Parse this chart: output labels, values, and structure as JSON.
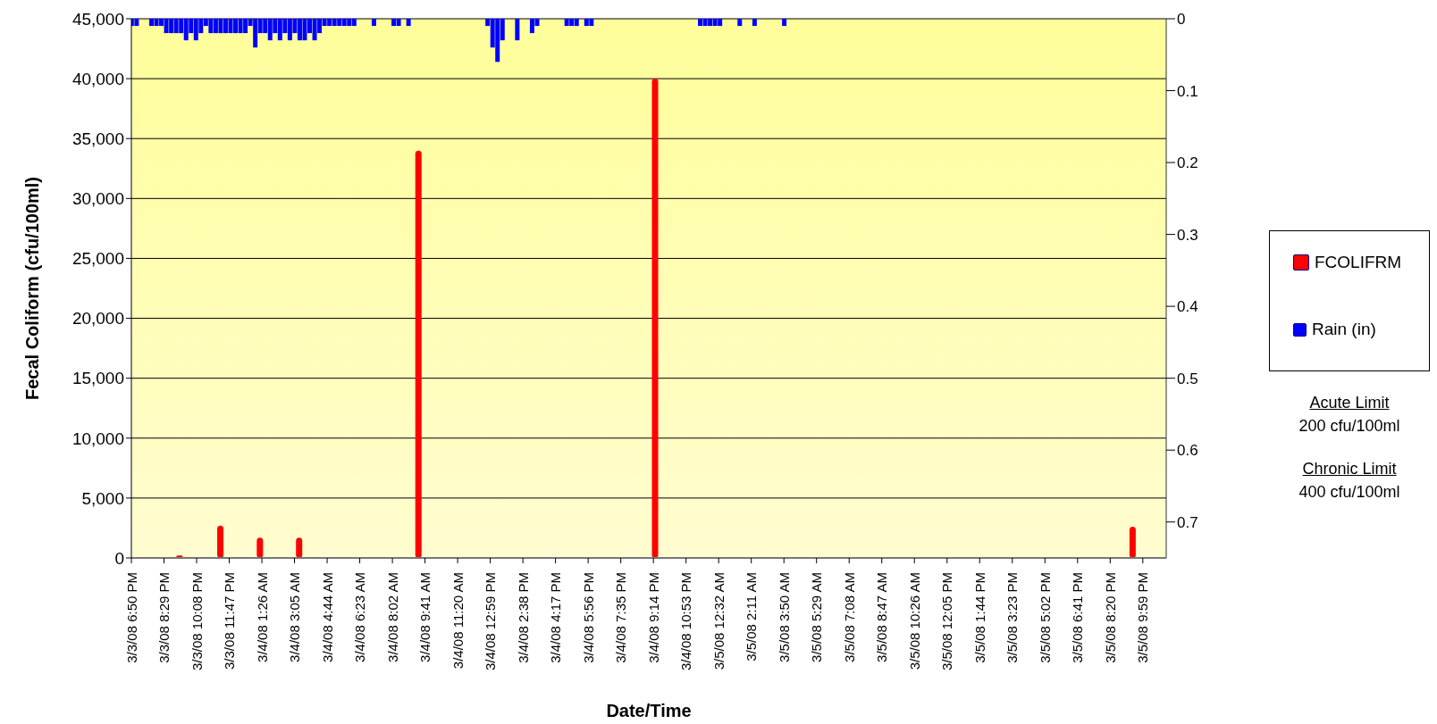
{
  "chart_data": {
    "type": "bar",
    "xlabel": "Date/Time",
    "ylabel": "Fecal Coliform (cfu/100ml)",
    "legend": "right",
    "grid": "y",
    "xlim": [
      "--03-03T18:50",
      "--03-05T23:10"
    ],
    "xticks": [
      {
        "value": "--03-03T18:50",
        "label": "3/3/08 6:50 PM"
      },
      {
        "value": "--03-03T20:29",
        "label": "3/3/08 8:29 PM"
      },
      {
        "value": "--03-03T22:08",
        "label": "3/3/08 10:08 PM"
      },
      {
        "value": "--03-03T23:47",
        "label": "3/3/08 11:47 PM"
      },
      {
        "value": "--03-04T01:26",
        "label": "3/4/08 1:26 AM"
      },
      {
        "value": "--03-04T03:05",
        "label": "3/4/08 3:05 AM"
      },
      {
        "value": "--03-04T04:44",
        "label": "3/4/08 4:44 AM"
      },
      {
        "value": "--03-04T06:23",
        "label": "3/4/08 6:23 AM"
      },
      {
        "value": "--03-04T08:02",
        "label": "3/4/08 8:02 AM"
      },
      {
        "value": "--03-04T09:41",
        "label": "3/4/08 9:41 AM"
      },
      {
        "value": "--03-04T11:20",
        "label": "3/4/08 11:20 AM"
      },
      {
        "value": "--03-04T12:59",
        "label": "3/4/08 12:59 PM"
      },
      {
        "value": "--03-04T14:38",
        "label": "3/4/08 2:38 PM"
      },
      {
        "value": "--03-04T16:17",
        "label": "3/4/08 4:17 PM"
      },
      {
        "value": "--03-04T17:56",
        "label": "3/4/08 5:56 PM"
      },
      {
        "value": "--03-04T19:35",
        "label": "3/4/08 7:35 PM"
      },
      {
        "value": "--03-04T21:14",
        "label": "3/4/08 9:14 PM"
      },
      {
        "value": "--03-04T22:53",
        "label": "3/4/08 10:53 PM"
      },
      {
        "value": "--03-05T00:32",
        "label": "3/5/08 12:32 AM"
      },
      {
        "value": "--03-05T02:11",
        "label": "3/5/08 2:11 AM"
      },
      {
        "value": "--03-05T03:50",
        "label": "3/5/08 3:50 AM"
      },
      {
        "value": "--03-05T05:29",
        "label": "3/5/08 5:29 AM"
      },
      {
        "value": "--03-05T07:08",
        "label": "3/5/08 7:08 AM"
      },
      {
        "value": "--03-05T08:47",
        "label": "3/5/08 8:47 AM"
      },
      {
        "value": "--03-05T10:26",
        "label": "3/5/08 10:26 AM"
      },
      {
        "value": "--03-05T12:05",
        "label": "3/5/08 12:05 PM"
      },
      {
        "value": "--03-05T13:44",
        "label": "3/5/08 1:44 PM"
      },
      {
        "value": "--03-05T15:23",
        "label": "3/5/08 3:23 PM"
      },
      {
        "value": "--03-05T17:02",
        "label": "3/5/08 5:02 PM"
      },
      {
        "value": "--03-05T18:41",
        "label": "3/5/08 6:41 PM"
      },
      {
        "value": "--03-05T20:20",
        "label": "3/5/08 8:20 PM"
      },
      {
        "value": "--03-05T21:59",
        "label": "3/5/08 9:59 PM"
      }
    ],
    "ylim": [
      0,
      45000
    ],
    "yticks": [
      0,
      {
        "value": 5000,
        "label": "5,000"
      },
      {
        "value": 10000,
        "label": "10,000"
      },
      {
        "value": 15000,
        "label": "15,000"
      },
      {
        "value": 20000,
        "label": "20,000"
      },
      {
        "value": 25000,
        "label": "25,000"
      },
      {
        "value": 30000,
        "label": "30,000"
      },
      {
        "value": 35000,
        "label": "35,000"
      },
      {
        "value": 40000,
        "label": "40,000"
      },
      {
        "value": 45000,
        "label": "45,000"
      }
    ],
    "y2lim": [
      0.75,
      0
    ],
    "y2ticks": [
      0,
      0.1,
      0.2,
      0.3,
      0.4,
      0.5,
      0.6,
      0.7
    ],
    "annotations": [
      "Acute Limit",
      "200 cfu/100ml",
      "Chronic Limit",
      "400 cfu/100ml"
    ],
    "series": [
      {
        "name": "FCOLIFRM",
        "color": "#ff0000",
        "x": [
          "--03-03T21:16",
          "--03-03T23:20",
          "--03-04T01:20",
          "--03-04T03:19",
          "--03-04T09:21",
          "--03-04T21:19",
          "--03-05T21:28"
        ],
        "values": [
          200,
          2700,
          1700,
          1700,
          34000,
          40000,
          2600
        ]
      },
      {
        "name": "Rain (in)",
        "color": "#0000ff",
        "axis": "y2",
        "x": [
          "--03-03T18:51",
          "--03-03T19:06",
          "--03-03T19:51",
          "--03-03T20:06",
          "--03-03T20:21",
          "--03-03T20:36",
          "--03-03T20:51",
          "--03-03T21:06",
          "--03-03T21:21",
          "--03-03T21:36",
          "--03-03T21:51",
          "--03-03T22:06",
          "--03-03T22:21",
          "--03-03T22:36",
          "--03-03T22:51",
          "--03-03T23:06",
          "--03-03T23:21",
          "--03-03T23:36",
          "--03-03T23:51",
          "--03-04T00:06",
          "--03-04T00:21",
          "--03-04T00:36",
          "--03-04T00:51",
          "--03-04T01:06",
          "--03-04T01:21",
          "--03-04T01:36",
          "--03-04T01:51",
          "--03-04T02:06",
          "--03-04T02:21",
          "--03-04T02:36",
          "--03-04T02:51",
          "--03-04T03:06",
          "--03-04T03:21",
          "--03-04T03:36",
          "--03-04T03:51",
          "--03-04T04:06",
          "--03-04T04:21",
          "--03-04T04:36",
          "--03-04T04:51",
          "--03-04T05:06",
          "--03-04T05:21",
          "--03-04T05:36",
          "--03-04T05:51",
          "--03-04T06:06",
          "--03-04T07:06",
          "--03-04T08:06",
          "--03-04T08:21",
          "--03-04T08:51",
          "--03-04T12:51",
          "--03-04T13:06",
          "--03-04T13:21",
          "--03-04T13:36",
          "--03-04T14:21",
          "--03-04T15:06",
          "--03-04T15:21",
          "--03-04T16:51",
          "--03-04T17:06",
          "--03-04T17:21",
          "--03-04T17:51",
          "--03-04T18:06",
          "--03-04T23:36",
          "--03-04T23:51",
          "--03-05T00:06",
          "--03-05T00:21",
          "--03-05T00:36",
          "--03-05T01:36",
          "--03-05T02:21",
          "--03-05T03:51"
        ],
        "values": [
          0.01,
          0.01,
          0.01,
          0.01,
          0.01,
          0.02,
          0.02,
          0.02,
          0.02,
          0.03,
          0.02,
          0.03,
          0.02,
          0.01,
          0.02,
          0.02,
          0.02,
          0.02,
          0.02,
          0.02,
          0.02,
          0.02,
          0.01,
          0.04,
          0.02,
          0.02,
          0.03,
          0.02,
          0.03,
          0.02,
          0.03,
          0.02,
          0.03,
          0.03,
          0.02,
          0.03,
          0.02,
          0.01,
          0.01,
          0.01,
          0.01,
          0.01,
          0.01,
          0.01,
          0.01,
          0.01,
          0.01,
          0.01,
          0.01,
          0.04,
          0.06,
          0.03,
          0.03,
          0.02,
          0.01,
          0.01,
          0.01,
          0.01,
          0.01,
          0.01,
          0.01,
          0.01,
          0.01,
          0.01,
          0.01,
          0.01,
          0.01,
          0.01
        ]
      }
    ]
  }
}
